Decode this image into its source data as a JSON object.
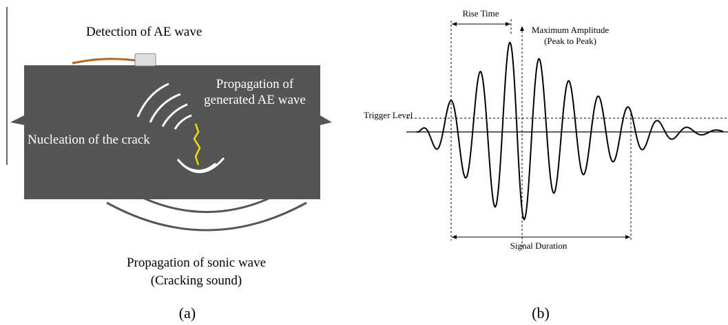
{
  "panel_a": {
    "detection": "Detection of AE wave",
    "propagation_ae": [
      "Propagation of",
      "generated AE wave"
    ],
    "nucleation": "Nucleation of the crack",
    "sonic": [
      "Propagation of sonic wave",
      "(Cracking sound)"
    ],
    "caption": "(a)"
  },
  "panel_b": {
    "rise_time": "Rise Time",
    "max_amplitude": [
      "Maximum Amplitude",
      "(Peak to Peak)"
    ],
    "trigger": "Trigger Level",
    "duration": "Signal Duration",
    "caption": "(b)"
  }
}
